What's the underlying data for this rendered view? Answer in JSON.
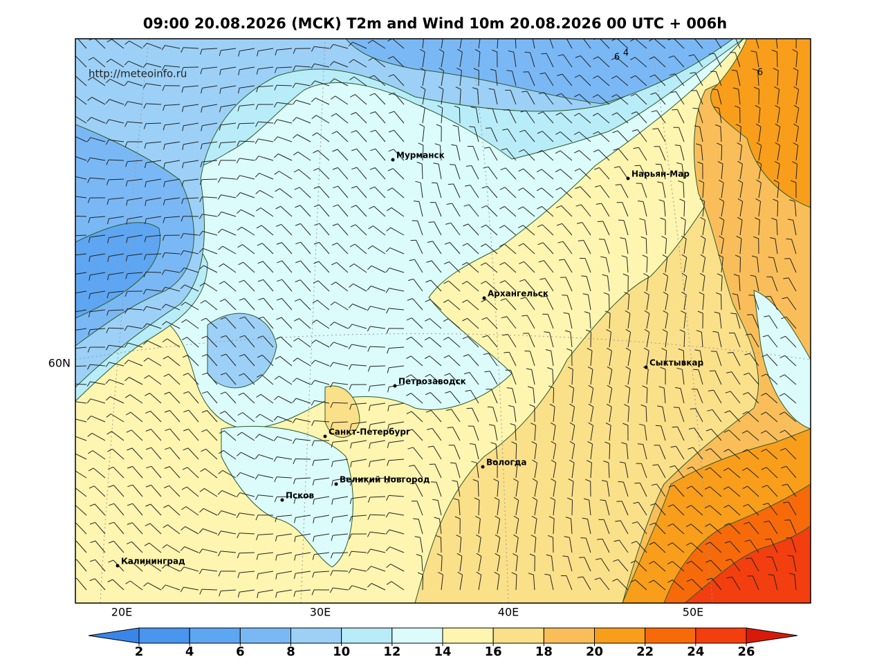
{
  "title": "09:00 20.08.2026 (МСК) T2m and Wind 10m 20.08.2026 00 UTC + 006h",
  "source": "http://meteoinfo.ru",
  "axes": {
    "x_labels": [
      "20E",
      "30E",
      "40E",
      "50E"
    ],
    "y_labels": [
      "60N"
    ]
  },
  "cities": [
    "Мурманск",
    "Нарьян-Мар",
    "Архангельск",
    "Сыктывкар",
    "Петрозаводск",
    "Санкт-Петербург",
    "Вологда",
    "Великий Новгород",
    "Псков",
    "Калининград"
  ],
  "contour_labels": [
    6,
    4,
    6
  ],
  "colorbar": {
    "ticks": [
      2,
      4,
      6,
      8,
      10,
      12,
      14,
      16,
      18,
      20,
      22,
      24,
      26
    ],
    "colors": [
      "#3a86e8",
      "#4a95ee",
      "#5ea6f2",
      "#7ab8f5",
      "#9cd0f7",
      "#b8ecf8",
      "#dcfbfb",
      "#fdf5b0",
      "#fbe08a",
      "#f9be5a",
      "#f99e1a",
      "#f76a0a",
      "#f33e10",
      "#d91a0a"
    ]
  }
}
